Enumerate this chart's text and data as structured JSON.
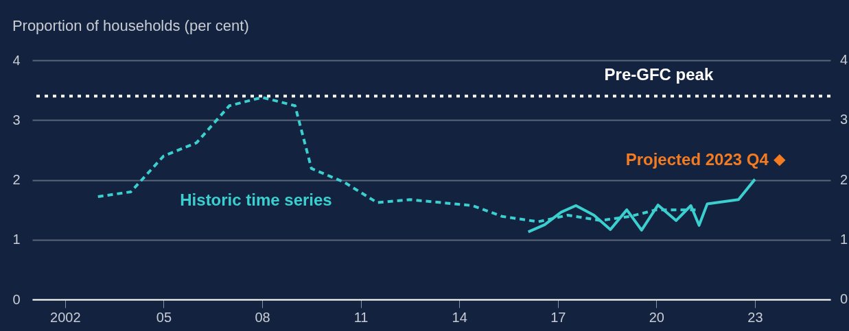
{
  "chart_data": {
    "type": "line",
    "ylabel": "Proportion of households (per cent)",
    "xlim": [
      2001,
      2025.3
    ],
    "xticks": [
      {
        "value": 2002,
        "label": "2002"
      },
      {
        "value": 2005,
        "label": "05"
      },
      {
        "value": 2008,
        "label": "08"
      },
      {
        "value": 2011,
        "label": "11"
      },
      {
        "value": 2014,
        "label": "14"
      },
      {
        "value": 2017,
        "label": "17"
      },
      {
        "value": 2020,
        "label": "20"
      },
      {
        "value": 2023,
        "label": "23"
      }
    ],
    "ylim": [
      0,
      4
    ],
    "yticks": [
      0,
      1,
      2,
      3,
      4
    ],
    "y2lim": [
      0,
      4
    ],
    "y2ticks": [
      0,
      1,
      2,
      3,
      4
    ],
    "grid": "y",
    "series": [
      {
        "type": "line",
        "name": "Historic time series",
        "line_style": "dashed",
        "color": "#3ccfcf",
        "x": [
          2003.0,
          2004.0,
          2005.0,
          2006.0,
          2007.0,
          2008.0,
          2009.0,
          2009.5,
          2010.5,
          2011.5,
          2012.5,
          2014.4,
          2015.3,
          2016.4,
          2017.3,
          2018.3,
          2019.2,
          2020.0,
          2021.3
        ],
        "values": [
          1.72,
          1.8,
          2.4,
          2.62,
          3.24,
          3.38,
          3.24,
          2.19,
          1.96,
          1.62,
          1.67,
          1.57,
          1.39,
          1.3,
          1.41,
          1.32,
          1.39,
          1.5,
          1.5
        ]
      },
      {
        "type": "line",
        "line_style": "solid",
        "color": "#3ccfcf",
        "x": [
          2016.1,
          2016.6,
          2017.1,
          2017.55,
          2018.1,
          2018.6,
          2019.1,
          2019.55,
          2020.05,
          2020.6,
          2021.05,
          2021.3,
          2021.55,
          2022.5,
          2023.0
        ],
        "values": [
          1.13,
          1.25,
          1.46,
          1.57,
          1.41,
          1.17,
          1.5,
          1.16,
          1.58,
          1.32,
          1.57,
          1.24,
          1.6,
          1.67,
          2.01
        ]
      },
      {
        "type": "scatter",
        "name": "Projected 2023 Q4",
        "marker": "diamond",
        "color": "#f47b20",
        "x": [
          2023.75
        ],
        "values": [
          2.33
        ]
      }
    ],
    "ref_lines": [
      {
        "axis": "y",
        "value": 3.4,
        "label": "Pre-GFC peak",
        "color": "#ffffff",
        "line_style": "dotted"
      }
    ]
  }
}
